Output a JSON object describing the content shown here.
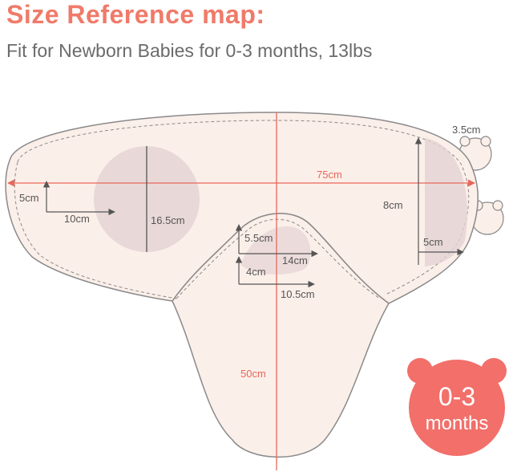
{
  "header": {
    "title": "Size Reference map:",
    "subtitle": "Fit for Newborn Babies for 0-3 months, 13lbs"
  },
  "measurements": {
    "tab_height": "3.5cm",
    "total_width": "75cm",
    "hood_height": "8cm",
    "hood_width": "5cm",
    "left_offset": "5cm",
    "left_length": "10cm",
    "arm_circle": "16.5cm",
    "neck_height": "5.5cm",
    "neck_width": "14cm",
    "inner_height": "4cm",
    "inner_width": "10.5cm",
    "total_length": "50cm"
  },
  "badge": {
    "age_range": "0-3",
    "unit": "months"
  },
  "colors": {
    "accent": "#f07a6a",
    "fabric": "#fbefe9",
    "badge": "#f26f6a",
    "measure_red": "#e8675a"
  }
}
